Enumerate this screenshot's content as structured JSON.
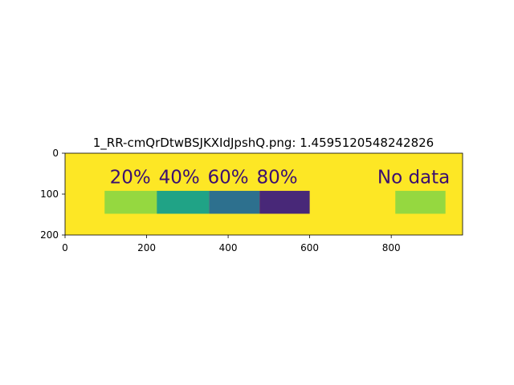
{
  "chart_data": {
    "type": "heatmap",
    "title": "1_RR-cmQrDtwBSJKXIdJpshQ.png: 1.4595120548242826",
    "xlabel": "",
    "ylabel": "",
    "xlim": [
      0,
      975
    ],
    "ylim": [
      200,
      0
    ],
    "xticks": [
      0,
      200,
      400,
      600,
      800
    ],
    "yticks": [
      0,
      100,
      200
    ],
    "background_color": "#fde725",
    "grid": false,
    "legend": "none",
    "image_labels": [
      {
        "text": "20%",
        "x": 160,
        "y": 58
      },
      {
        "text": "40%",
        "x": 280,
        "y": 58
      },
      {
        "text": "60%",
        "x": 400,
        "y": 58
      },
      {
        "text": "80%",
        "x": 520,
        "y": 58
      },
      {
        "text": "No data",
        "x": 855,
        "y": 58
      }
    ],
    "swatches": [
      {
        "x0": 97,
        "x1": 225,
        "y0": 92,
        "y1": 148,
        "color": "#95d840"
      },
      {
        "x0": 225,
        "x1": 353,
        "y0": 92,
        "y1": 148,
        "color": "#20a386"
      },
      {
        "x0": 353,
        "x1": 477,
        "y0": 92,
        "y1": 148,
        "color": "#2d708e"
      },
      {
        "x0": 477,
        "x1": 600,
        "y0": 92,
        "y1": 148,
        "color": "#482878"
      },
      {
        "x0": 810,
        "x1": 933,
        "y0": 92,
        "y1": 148,
        "color": "#95d840"
      }
    ]
  }
}
